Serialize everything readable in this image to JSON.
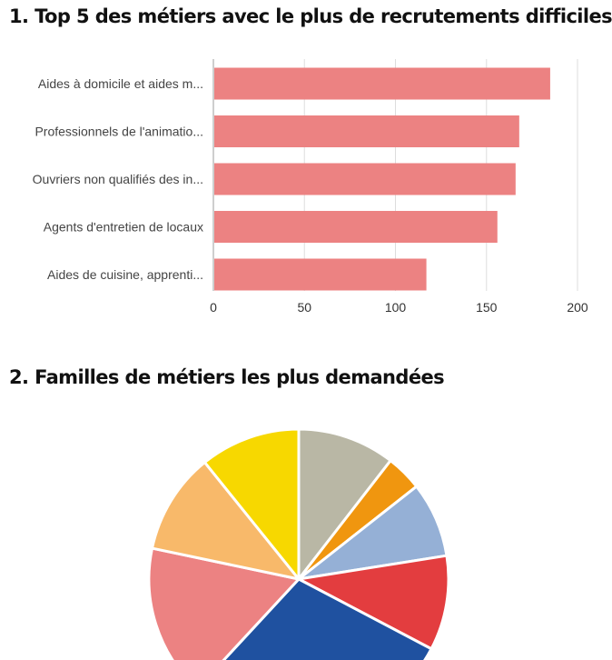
{
  "charts": {
    "bar_title": "1. Top 5 des métiers avec le plus de recrutements difficiles",
    "pie_title": "2. Familles de métiers les plus demandées"
  },
  "chart_data": [
    {
      "type": "bar",
      "orientation": "horizontal",
      "title": "1. Top 5 des métiers avec le plus de recrutements difficiles",
      "categories": [
        "Aides à domicile et aides m...",
        "Professionnels de l'animatio...",
        "Ouvriers non qualifiés des in...",
        "Agents d'entretien de locaux",
        "Aides de cuisine, apprenti..."
      ],
      "values": [
        185,
        168,
        166,
        156,
        117
      ],
      "xlim": [
        0,
        200
      ],
      "xticks": [
        0,
        50,
        100,
        150,
        200
      ],
      "grid": true,
      "color": "#ec8282"
    },
    {
      "type": "pie",
      "title": "2. Familles de métiers les plus demandées",
      "values": [
        10.5,
        3.9,
        8.1,
        10.2,
        29.2,
        16.4,
        10.9,
        10.8
      ],
      "colors": [
        "#b9b7a5",
        "#f0960f",
        "#95b0d6",
        "#e33d3f",
        "#1f51a0",
        "#ec8282",
        "#f8b96a",
        "#f7d800"
      ],
      "start": "top",
      "direction": "clockwise"
    }
  ]
}
